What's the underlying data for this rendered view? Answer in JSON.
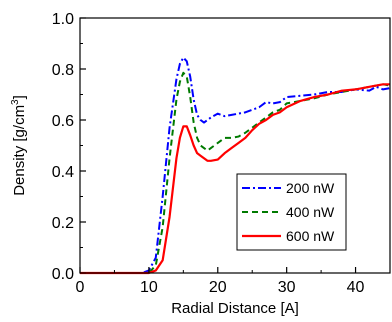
{
  "chart_data": {
    "type": "line",
    "xlabel": "Radial Distance [A]",
    "ylabel_main": "Density [g/cm",
    "ylabel_sup": "3",
    "ylabel_close": "]",
    "xlim": [
      0,
      45
    ],
    "ylim": [
      0.0,
      1.0
    ],
    "x_ticks": [
      0,
      10,
      20,
      30,
      40
    ],
    "y_ticks": [
      0.0,
      0.2,
      0.4,
      0.6,
      0.8,
      1.0
    ],
    "x_tick_labels": [
      "0",
      "10",
      "20",
      "30",
      "40"
    ],
    "y_tick_labels": [
      "0.0",
      "0.2",
      "0.4",
      "0.6",
      "0.8",
      "1.0"
    ],
    "grid": false,
    "legend_position": "lower-right",
    "series": [
      {
        "name": "200 nW",
        "color": "#0000ff",
        "dash": "dashdot",
        "x": [
          0,
          9,
          10,
          11,
          12,
          13,
          14,
          14.5,
          15,
          15.5,
          16,
          16.5,
          17,
          17.5,
          18,
          18.5,
          19,
          20,
          21,
          22,
          23,
          24,
          25,
          26,
          27,
          28,
          29,
          30,
          32,
          34,
          36,
          38,
          40,
          42,
          43,
          44,
          45
        ],
        "y": [
          0.0,
          0.0,
          0.01,
          0.06,
          0.3,
          0.57,
          0.76,
          0.82,
          0.845,
          0.83,
          0.77,
          0.68,
          0.62,
          0.6,
          0.59,
          0.6,
          0.61,
          0.625,
          0.615,
          0.62,
          0.625,
          0.63,
          0.64,
          0.65,
          0.67,
          0.665,
          0.67,
          0.69,
          0.695,
          0.7,
          0.71,
          0.71,
          0.72,
          0.715,
          0.73,
          0.72,
          0.725
        ]
      },
      {
        "name": "400 nW",
        "color": "#007a00",
        "dash": "dash",
        "x": [
          0,
          10,
          11,
          12,
          13,
          14,
          14.5,
          15,
          15.5,
          16,
          16.5,
          17,
          17.5,
          18,
          18.5,
          19,
          20,
          21,
          22,
          23,
          24,
          25,
          26,
          27,
          28,
          29,
          30,
          32,
          34,
          36,
          38,
          40,
          42,
          44,
          45
        ],
        "y": [
          0.0,
          0.0,
          0.03,
          0.18,
          0.45,
          0.68,
          0.75,
          0.785,
          0.77,
          0.69,
          0.59,
          0.53,
          0.5,
          0.49,
          0.48,
          0.49,
          0.51,
          0.53,
          0.53,
          0.535,
          0.55,
          0.57,
          0.59,
          0.61,
          0.63,
          0.64,
          0.665,
          0.675,
          0.685,
          0.7,
          0.71,
          0.72,
          0.73,
          0.74,
          0.735
        ]
      },
      {
        "name": "600 nW",
        "color": "#ff0000",
        "dash": "solid",
        "x": [
          0,
          10,
          11,
          12,
          13,
          14,
          14.5,
          15,
          15.5,
          16,
          16.5,
          17,
          17.5,
          18,
          18.5,
          19,
          20,
          21,
          22,
          23,
          24,
          25,
          26,
          27,
          28,
          29,
          30,
          32,
          34,
          36,
          38,
          40,
          42,
          44,
          45
        ],
        "y": [
          0.0,
          0.0,
          0.01,
          0.05,
          0.22,
          0.45,
          0.53,
          0.575,
          0.575,
          0.54,
          0.5,
          0.47,
          0.46,
          0.45,
          0.44,
          0.44,
          0.445,
          0.47,
          0.49,
          0.51,
          0.53,
          0.56,
          0.585,
          0.6,
          0.62,
          0.63,
          0.65,
          0.675,
          0.69,
          0.7,
          0.715,
          0.72,
          0.73,
          0.74,
          0.74
        ]
      }
    ]
  }
}
